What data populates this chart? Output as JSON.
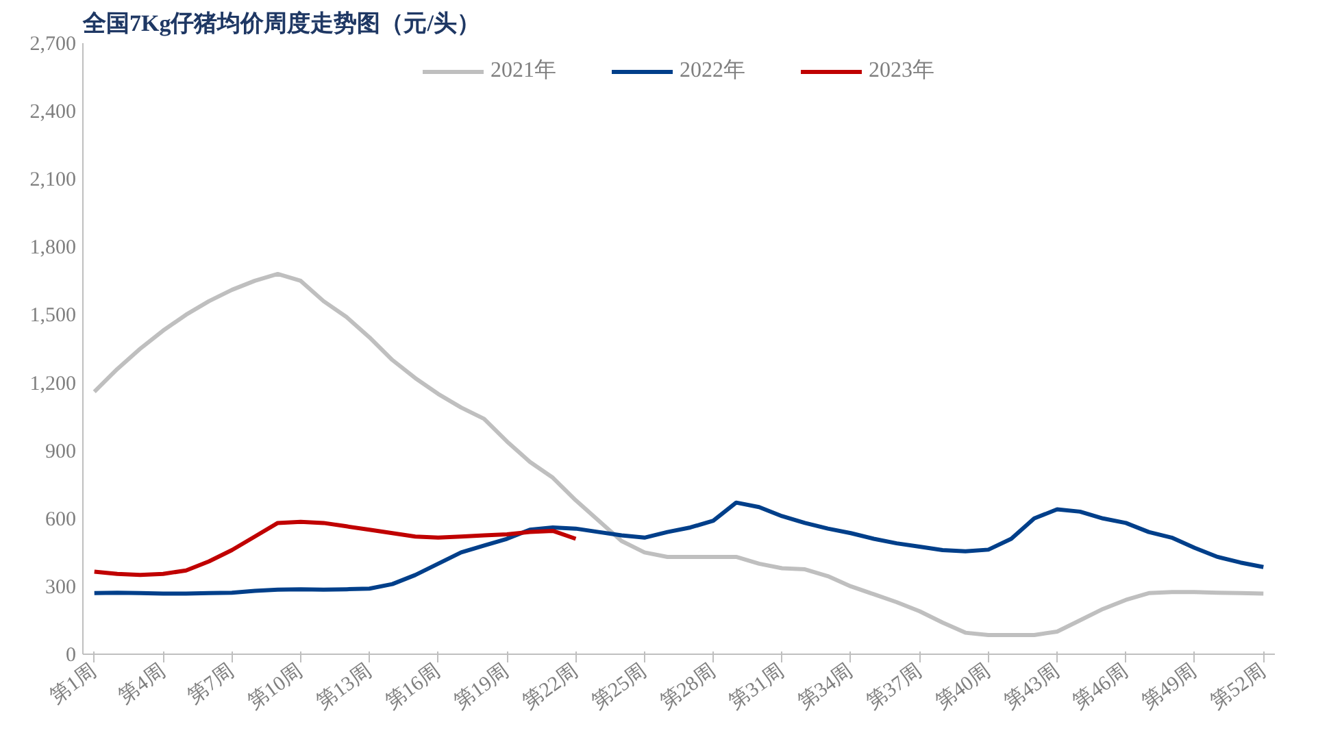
{
  "chart_data": {
    "type": "line",
    "title": "全国7Kg仔猪均价周度走势图（元/头）",
    "categories": [
      "第1周",
      null,
      null,
      "第4周",
      null,
      null,
      "第7周",
      null,
      null,
      "第10周",
      null,
      null,
      "第13周",
      null,
      null,
      "第16周",
      null,
      null,
      "第19周",
      null,
      null,
      "第22周",
      null,
      null,
      "第25周",
      null,
      null,
      "第28周",
      null,
      null,
      "第31周",
      null,
      null,
      "第34周",
      null,
      null,
      "第37周",
      null,
      null,
      "第40周",
      null,
      null,
      "第43周",
      null,
      null,
      "第46周",
      null,
      null,
      "第49周",
      null,
      null,
      "第52周"
    ],
    "series": [
      {
        "name": "2021年",
        "color": "#bfbfbf",
        "values": [
          1160,
          1260,
          1350,
          1430,
          1500,
          1560,
          1610,
          1650,
          1680,
          1650,
          1560,
          1490,
          1400,
          1300,
          1220,
          1150,
          1090,
          1040,
          940,
          850,
          780,
          680,
          590,
          500,
          450,
          430,
          430,
          430,
          430,
          400,
          380,
          375,
          345,
          300,
          265,
          230,
          190,
          140,
          95,
          85,
          85,
          85,
          100,
          150,
          200,
          240,
          270,
          275,
          275,
          272,
          270,
          268
        ]
      },
      {
        "name": "2022年",
        "color": "#003f8a",
        "values": [
          270,
          272,
          270,
          268,
          268,
          270,
          272,
          280,
          285,
          287,
          285,
          287,
          290,
          310,
          350,
          400,
          450,
          480,
          510,
          550,
          560,
          555,
          540,
          525,
          515,
          540,
          560,
          590,
          670,
          650,
          610,
          580,
          555,
          535,
          510,
          490,
          475,
          460,
          455,
          462,
          510,
          600,
          640,
          630,
          600,
          580,
          540,
          515,
          470,
          430,
          405,
          385
        ]
      },
      {
        "name": "2023年",
        "color": "#c00000",
        "values": [
          365,
          355,
          350,
          355,
          370,
          410,
          460,
          520,
          580,
          585,
          580,
          565,
          550,
          535,
          520,
          515,
          520,
          525,
          530,
          540,
          545,
          510,
          null,
          null,
          null,
          null,
          null,
          null,
          null,
          null,
          null,
          null,
          null,
          null,
          null,
          null,
          null,
          null,
          null,
          null,
          null,
          null,
          null,
          null,
          null,
          null,
          null,
          null,
          null,
          null,
          null,
          null
        ]
      }
    ],
    "ylim": [
      0,
      2700
    ],
    "yticks": [
      {
        "value": 0,
        "label": "0"
      },
      {
        "value": 300,
        "label": "300"
      },
      {
        "value": 600,
        "label": "600"
      },
      {
        "value": 900,
        "label": "900"
      },
      {
        "value": 1200,
        "label": "1,200"
      },
      {
        "value": 1500,
        "label": "1,500"
      },
      {
        "value": 1800,
        "label": "1,800"
      },
      {
        "value": 2100,
        "label": "2,100"
      },
      {
        "value": 2400,
        "label": "2,400"
      },
      {
        "value": 2700,
        "label": "2,700"
      }
    ],
    "grid": false,
    "legend": "top",
    "line_style": "solid"
  }
}
